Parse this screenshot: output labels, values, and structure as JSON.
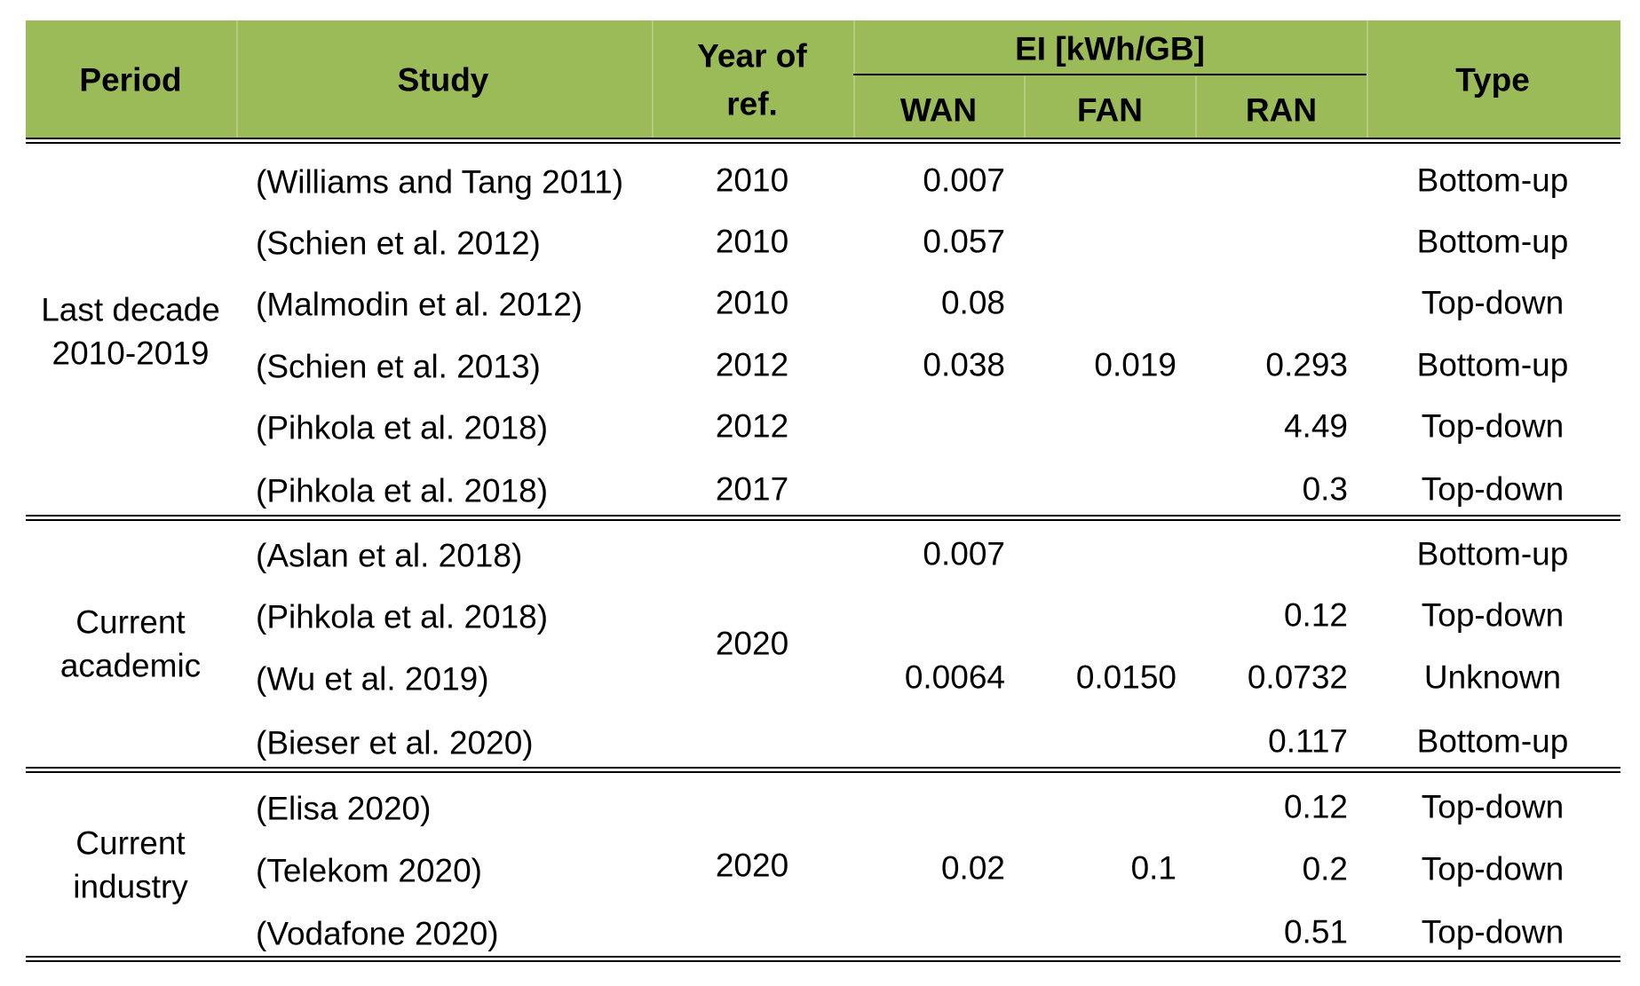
{
  "header": {
    "period": "Period",
    "study": "Study",
    "year_line1": "Year of",
    "year_line2": "ref.",
    "ei_group": "EI [kWh/GB]",
    "wan": "WAN",
    "fan": "FAN",
    "ran": "RAN",
    "type": "Type"
  },
  "groups": [
    {
      "period_line1": "Last decade",
      "period_line2": "2010-2019",
      "rows": [
        {
          "study": "(Williams and Tang 2011)",
          "year": "2010",
          "wan": "0.007",
          "fan": "",
          "ran": "",
          "type": "Bottom-up"
        },
        {
          "study": "(Schien et al. 2012)",
          "year": "2010",
          "wan": "0.057",
          "fan": "",
          "ran": "",
          "type": "Bottom-up"
        },
        {
          "study": "(Malmodin et al. 2012)",
          "year": "2010",
          "wan": "0.08",
          "fan": "",
          "ran": "",
          "type": "Top-down"
        },
        {
          "study": "(Schien et al. 2013)",
          "year": "2012",
          "wan": "0.038",
          "fan": "0.019",
          "ran": "0.293",
          "type": "Bottom-up"
        },
        {
          "study": "(Pihkola et al. 2018)",
          "year": "2012",
          "wan": "",
          "fan": "",
          "ran": "4.49",
          "type": "Top-down"
        },
        {
          "study": "(Pihkola et al. 2018)",
          "year": "2017",
          "wan": "",
          "fan": "",
          "ran": "0.3",
          "type": "Top-down"
        }
      ]
    },
    {
      "period_line1": "Current",
      "period_line2": "academic",
      "year": "2020",
      "rows": [
        {
          "study": "(Aslan et al. 2018)",
          "wan": "0.007",
          "fan": "",
          "ran": "",
          "type": "Bottom-up"
        },
        {
          "study": "(Pihkola et al. 2018)",
          "wan": "",
          "fan": "",
          "ran": "0.12",
          "type": "Top-down"
        },
        {
          "study": "(Wu et al. 2019)",
          "wan": "0.0064",
          "fan": "0.0150",
          "ran": "0.0732",
          "type": "Unknown"
        },
        {
          "study": "(Bieser et al. 2020)",
          "wan": "",
          "fan": "",
          "ran": "0.117",
          "type": "Bottom-up"
        }
      ]
    },
    {
      "period_line1": "Current",
      "period_line2": "industry",
      "year": "2020",
      "wan": "0.02",
      "fan": "0.1",
      "rows": [
        {
          "study": "(Elisa 2020)",
          "ran": "0.12",
          "type": "Top-down"
        },
        {
          "study": "(Telekom 2020)",
          "ran": "0.2",
          "type": "Top-down"
        },
        {
          "study": "(Vodafone 2020)",
          "ran": "0.51",
          "type": "Top-down"
        }
      ]
    }
  ]
}
